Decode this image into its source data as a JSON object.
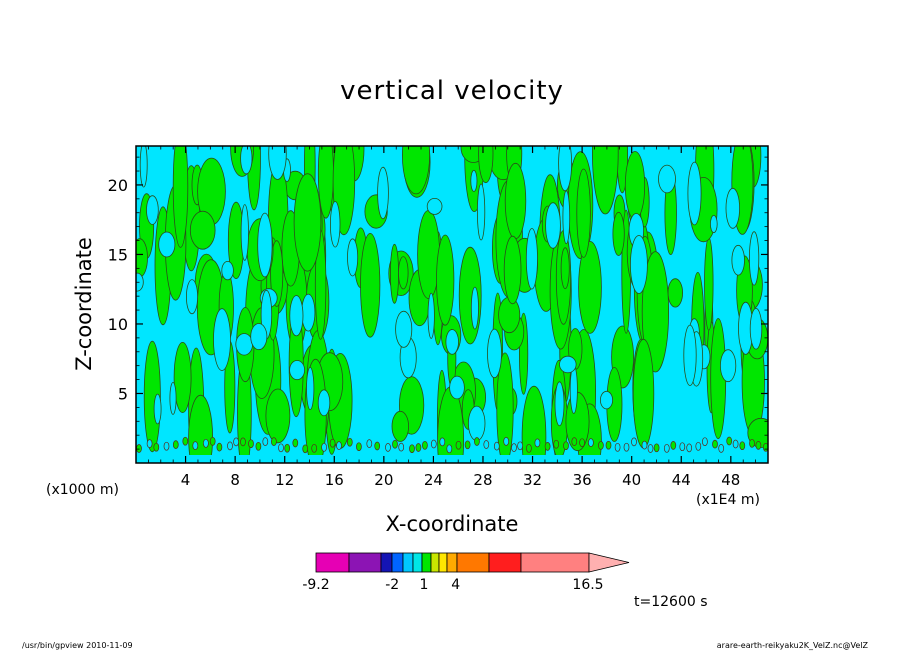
{
  "chart_data": {
    "type": "heatmap",
    "title": "vertical velocity",
    "xlabel": "X-coordinate",
    "ylabel": "Z-coordinate",
    "x_unit_left": "(x1000 m)",
    "x_unit_right": "(x1E4 m)",
    "xlim": [
      0,
      51
    ],
    "ylim": [
      0,
      22.8
    ],
    "x_ticks": [
      4,
      8,
      12,
      16,
      20,
      24,
      28,
      32,
      36,
      40,
      44,
      48
    ],
    "y_ticks": [
      5,
      10,
      15,
      20
    ],
    "dominant_levels": [
      "cyan (negative, near 0)",
      "green (positive, near 0)"
    ],
    "colorbar": {
      "min": -9.2,
      "max": 16.5,
      "tick_labels": [
        "-9.2",
        "-2",
        "1",
        "4",
        "16.5"
      ],
      "tick_values": [
        -9.2,
        -2,
        1,
        4,
        16.5
      ],
      "colors": [
        "#e600b4",
        "#8c14b4",
        "#1414b4",
        "#0064ff",
        "#00c8ff",
        "#00e6e6",
        "#00e600",
        "#c8e600",
        "#ffe600",
        "#ffaa00",
        "#ff7800",
        "#ff1e1e",
        "#ff8080"
      ]
    },
    "time_label": "t=12600 s"
  },
  "footer": {
    "left": "/usr/bin/gpview   2010-11-09",
    "right": "arare-earth-reikyaku2K_VelZ.nc@VelZ"
  }
}
